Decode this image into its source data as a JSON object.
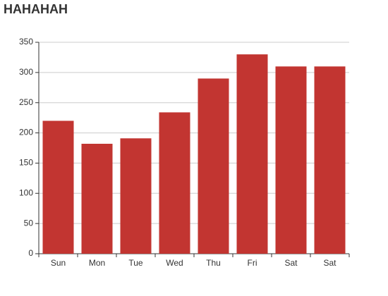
{
  "chart_data": {
    "type": "bar",
    "title": "HAHAHAH",
    "categories": [
      "Sun",
      "Mon",
      "Tue",
      "Wed",
      "Thu",
      "Fri",
      "Sat",
      "Sat"
    ],
    "values": [
      220,
      182,
      191,
      234,
      290,
      330,
      310,
      310
    ],
    "color": "#c23531",
    "ylim": [
      0,
      350
    ],
    "yticks": [
      0,
      50,
      100,
      150,
      200,
      250,
      300,
      350
    ],
    "grid": true
  }
}
